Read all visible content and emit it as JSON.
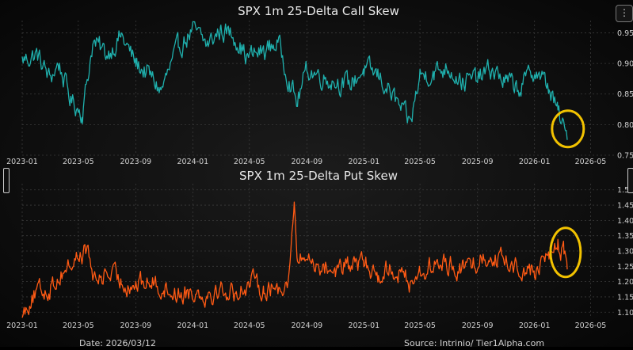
{
  "menu_glyph": "⋮",
  "footer": {
    "date_text": "Date: 2026/03/12",
    "source_text": "Source: Intrinio/ Tier1Alpha.com"
  },
  "colors": {
    "call_line": "#1fb0ad",
    "put_line": "#ff5a14",
    "highlight": "#f2c200",
    "grid": "#3a3a3a",
    "axis_text": "#d0d0d0",
    "title_text": "#e8e8e8"
  },
  "chart_data": [
    {
      "type": "line",
      "title": "SPX 1m 25-Delta Call Skew",
      "x_ticks": [
        "2023-01",
        "2023-05",
        "2023-09",
        "2024-01",
        "2024-05",
        "2024-09",
        "2025-01",
        "2025-05",
        "2025-09",
        "2026-01",
        "2026-05"
      ],
      "x_range": [
        "2023-01-01",
        "2026-06-20"
      ],
      "ylim": [
        0.75,
        0.97
      ],
      "y_ticks": [
        0.75,
        0.8,
        0.85,
        0.9,
        0.95
      ],
      "grid": true,
      "highlight_circle_date": "2026-03-10",
      "series": [
        {
          "anchors": [
            [
              "2023-01-01",
              0.905
            ],
            [
              "2023-02-01",
              0.915
            ],
            [
              "2023-03-01",
              0.875
            ],
            [
              "2023-03-20",
              0.9
            ],
            [
              "2023-04-15",
              0.84
            ],
            [
              "2023-05-10",
              0.82
            ],
            [
              "2023-06-01",
              0.935
            ],
            [
              "2023-07-01",
              0.915
            ],
            [
              "2023-08-01",
              0.945
            ],
            [
              "2023-09-01",
              0.9
            ],
            [
              "2023-10-01",
              0.88
            ],
            [
              "2023-10-25",
              0.855
            ],
            [
              "2023-12-01",
              0.925
            ],
            [
              "2024-01-01",
              0.955
            ],
            [
              "2024-02-01",
              0.93
            ],
            [
              "2024-03-01",
              0.955
            ],
            [
              "2024-04-01",
              0.945
            ],
            [
              "2024-04-25",
              0.91
            ],
            [
              "2024-06-01",
              0.92
            ],
            [
              "2024-07-01",
              0.935
            ],
            [
              "2024-07-25",
              0.875
            ],
            [
              "2024-08-10",
              0.835
            ],
            [
              "2024-09-01",
              0.89
            ],
            [
              "2024-10-15",
              0.875
            ],
            [
              "2024-12-01",
              0.865
            ],
            [
              "2025-01-01",
              0.89
            ],
            [
              "2025-02-01",
              0.88
            ],
            [
              "2025-03-01",
              0.85
            ],
            [
              "2025-04-10",
              0.8
            ],
            [
              "2025-05-01",
              0.88
            ],
            [
              "2025-06-01",
              0.885
            ],
            [
              "2025-07-01",
              0.895
            ],
            [
              "2025-08-01",
              0.87
            ],
            [
              "2025-09-01",
              0.875
            ],
            [
              "2025-10-01",
              0.89
            ],
            [
              "2025-11-01",
              0.87
            ],
            [
              "2025-12-01",
              0.86
            ],
            [
              "2026-01-01",
              0.89
            ],
            [
              "2026-02-01",
              0.86
            ],
            [
              "2026-02-20",
              0.82
            ],
            [
              "2026-03-12",
              0.775
            ]
          ]
        }
      ]
    },
    {
      "type": "line",
      "title": "SPX 1m 25-Delta Put Skew",
      "x_ticks": [
        "2023-01",
        "2023-05",
        "2023-09",
        "2024-01",
        "2024-05",
        "2024-09",
        "2025-01",
        "2025-05",
        "2025-09",
        "2026-01",
        "2026-05"
      ],
      "x_range": [
        "2023-01-01",
        "2026-06-20"
      ],
      "ylim": [
        1.08,
        1.52
      ],
      "y_ticks": [
        1.1,
        1.15,
        1.2,
        1.25,
        1.3,
        1.35,
        1.4,
        1.45,
        1.5
      ],
      "grid": true,
      "highlight_circle_date": "2026-03-05",
      "series": [
        {
          "anchors": [
            [
              "2023-01-01",
              1.09
            ],
            [
              "2023-01-20",
              1.15
            ],
            [
              "2023-03-01",
              1.18
            ],
            [
              "2023-04-01",
              1.24
            ],
            [
              "2023-05-20",
              1.305
            ],
            [
              "2023-06-05",
              1.2
            ],
            [
              "2023-07-01",
              1.23
            ],
            [
              "2023-08-01",
              1.2
            ],
            [
              "2023-09-01",
              1.19
            ],
            [
              "2023-10-01",
              1.2
            ],
            [
              "2023-11-01",
              1.18
            ],
            [
              "2023-12-01",
              1.16
            ],
            [
              "2024-01-01",
              1.17
            ],
            [
              "2024-02-01",
              1.16
            ],
            [
              "2024-03-01",
              1.175
            ],
            [
              "2024-04-01",
              1.16
            ],
            [
              "2024-05-01",
              1.2
            ],
            [
              "2024-06-01",
              1.18
            ],
            [
              "2024-07-01",
              1.175
            ],
            [
              "2024-07-25",
              1.22
            ],
            [
              "2024-08-05",
              1.45
            ],
            [
              "2024-08-12",
              1.26
            ],
            [
              "2024-09-01",
              1.28
            ],
            [
              "2024-10-01",
              1.25
            ],
            [
              "2024-11-01",
              1.24
            ],
            [
              "2024-12-01",
              1.25
            ],
            [
              "2025-01-01",
              1.26
            ],
            [
              "2025-02-01",
              1.22
            ],
            [
              "2025-03-01",
              1.25
            ],
            [
              "2025-04-08",
              1.2
            ],
            [
              "2025-05-01",
              1.23
            ],
            [
              "2025-06-01",
              1.25
            ],
            [
              "2025-07-01",
              1.26
            ],
            [
              "2025-08-01",
              1.24
            ],
            [
              "2025-09-01",
              1.27
            ],
            [
              "2025-10-01",
              1.29
            ],
            [
              "2025-11-01",
              1.26
            ],
            [
              "2025-12-01",
              1.25
            ],
            [
              "2026-01-01",
              1.23
            ],
            [
              "2026-02-01",
              1.29
            ],
            [
              "2026-02-20",
              1.32
            ],
            [
              "2026-03-05",
              1.29
            ],
            [
              "2026-03-12",
              1.24
            ]
          ]
        }
      ]
    }
  ]
}
